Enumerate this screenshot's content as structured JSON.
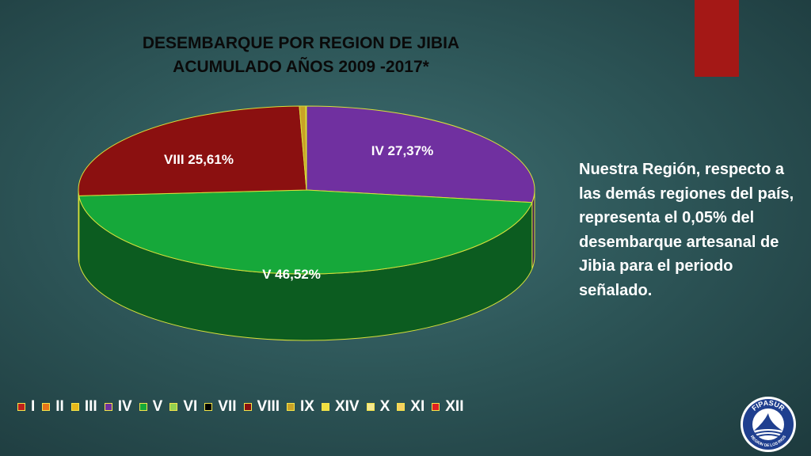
{
  "title": {
    "line1": "DESEMBARQUE  POR REGION DE JIBIA",
    "line2": "ACUMULADO AÑOS 2009 -2017*"
  },
  "note": "Nuestra Región, respecto a  las demás regiones del país, representa el 0,05% del desembarque artesanal de Jibia para el periodo señalado.",
  "logo": {
    "name": "FIPASUR",
    "subtitle": "REGION DE LOS RIOS"
  },
  "chart_data": {
    "type": "pie",
    "title": "DESEMBARQUE  POR REGION DE JIBIA ACUMULADO AÑOS 2009 -2017*",
    "legend_position": "bottom",
    "slices": [
      {
        "name": "I",
        "value": 0,
        "color": "#c0201c"
      },
      {
        "name": "II",
        "value": 0,
        "color": "#e8741a"
      },
      {
        "name": "III",
        "value": 0,
        "color": "#e8b81a"
      },
      {
        "name": "IV",
        "value": 27.37,
        "color": "#7030a0",
        "label": "IV 27,37%"
      },
      {
        "name": "V",
        "value": 46.52,
        "color": "#16a83a",
        "label": "V 46,52%"
      },
      {
        "name": "VI",
        "value": 0,
        "color": "#92d050"
      },
      {
        "name": "VII",
        "value": 0,
        "color": "#000000"
      },
      {
        "name": "VIII",
        "value": 25.61,
        "color": "#8b1010",
        "label": "VIII 25,61%"
      },
      {
        "name": "IX",
        "value": 0.45,
        "color": "#c9a227"
      },
      {
        "name": "XIV",
        "value": 0.05,
        "color": "#f0e040"
      },
      {
        "name": "X",
        "value": 0,
        "color": "#f5e890"
      },
      {
        "name": "XI",
        "value": 0,
        "color": "#f5d060"
      },
      {
        "name": "XII",
        "value": 0,
        "color": "#e02020"
      }
    ]
  }
}
